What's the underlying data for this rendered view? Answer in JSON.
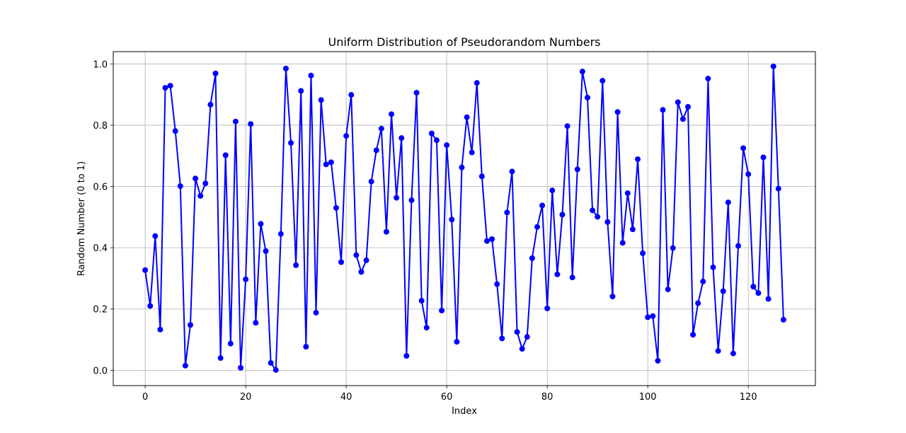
{
  "chart_data": {
    "type": "line",
    "title": "Uniform Distribution of Pseudorandom Numbers",
    "xlabel": "Index",
    "ylabel": "Random Number (0 to 1)",
    "xlim": [
      -6.35,
      133.35
    ],
    "ylim": [
      -0.05,
      1.04
    ],
    "xticks": [
      0,
      20,
      40,
      60,
      80,
      100,
      120
    ],
    "yticks": [
      0.0,
      0.2,
      0.4,
      0.6,
      0.8,
      1.0
    ],
    "xtick_labels": [
      "0",
      "20",
      "40",
      "60",
      "80",
      "100",
      "120"
    ],
    "ytick_labels": [
      "0.0",
      "0.2",
      "0.4",
      "0.6",
      "0.8",
      "1.0"
    ],
    "grid": true,
    "legend": null,
    "series": [
      {
        "color": "#0000ff",
        "marker": "circle",
        "x": [
          0,
          1,
          2,
          3,
          4,
          5,
          6,
          7,
          8,
          9,
          10,
          11,
          12,
          13,
          14,
          15,
          16,
          17,
          18,
          19,
          20,
          21,
          22,
          23,
          24,
          25,
          26,
          27,
          28,
          29,
          30,
          31,
          32,
          33,
          34,
          35,
          36,
          37,
          38,
          39,
          40,
          41,
          42,
          43,
          44,
          45,
          46,
          47,
          48,
          49,
          50,
          51,
          52,
          53,
          54,
          55,
          56,
          57,
          58,
          59,
          60,
          61,
          62,
          63,
          64,
          65,
          66,
          67,
          68,
          69,
          70,
          71,
          72,
          73,
          74,
          75,
          76,
          77,
          78,
          79,
          80,
          81,
          82,
          83,
          84,
          85,
          86,
          87,
          88,
          89,
          90,
          91,
          92,
          93,
          94,
          95,
          96,
          97,
          98,
          99,
          100,
          101,
          102,
          103,
          104,
          105,
          106,
          107,
          108,
          109,
          110,
          111,
          112,
          113,
          114,
          115,
          116,
          117,
          118,
          119,
          120,
          121,
          122,
          123,
          124,
          125,
          126,
          127
        ],
        "values": [
          0.327,
          0.21,
          0.438,
          0.133,
          0.922,
          0.929,
          0.781,
          0.601,
          0.015,
          0.148,
          0.626,
          0.569,
          0.61,
          0.867,
          0.969,
          0.04,
          0.702,
          0.087,
          0.812,
          0.008,
          0.297,
          0.804,
          0.155,
          0.478,
          0.389,
          0.024,
          0.001,
          0.445,
          0.985,
          0.742,
          0.343,
          0.912,
          0.077,
          0.962,
          0.188,
          0.882,
          0.672,
          0.679,
          0.53,
          0.353,
          0.765,
          0.899,
          0.376,
          0.321,
          0.359,
          0.616,
          0.718,
          0.789,
          0.452,
          0.836,
          0.563,
          0.758,
          0.047,
          0.555,
          0.906,
          0.227,
          0.139,
          0.773,
          0.751,
          0.195,
          0.735,
          0.492,
          0.093,
          0.662,
          0.826,
          0.711,
          0.938,
          0.633,
          0.422,
          0.428,
          0.281,
          0.104,
          0.515,
          0.649,
          0.125,
          0.07,
          0.109,
          0.366,
          0.468,
          0.538,
          0.202,
          0.587,
          0.313,
          0.508,
          0.797,
          0.303,
          0.656,
          0.975,
          0.89,
          0.522,
          0.501,
          0.945,
          0.484,
          0.241,
          0.843,
          0.416,
          0.578,
          0.46,
          0.689,
          0.382,
          0.173,
          0.177,
          0.031,
          0.85,
          0.264,
          0.399,
          0.875,
          0.82,
          0.86,
          0.116,
          0.219,
          0.29,
          0.952,
          0.336,
          0.063,
          0.258,
          0.548,
          0.055,
          0.406,
          0.725,
          0.64,
          0.273,
          0.252,
          0.695,
          0.233,
          0.992,
          0.593,
          0.165
        ]
      }
    ]
  }
}
